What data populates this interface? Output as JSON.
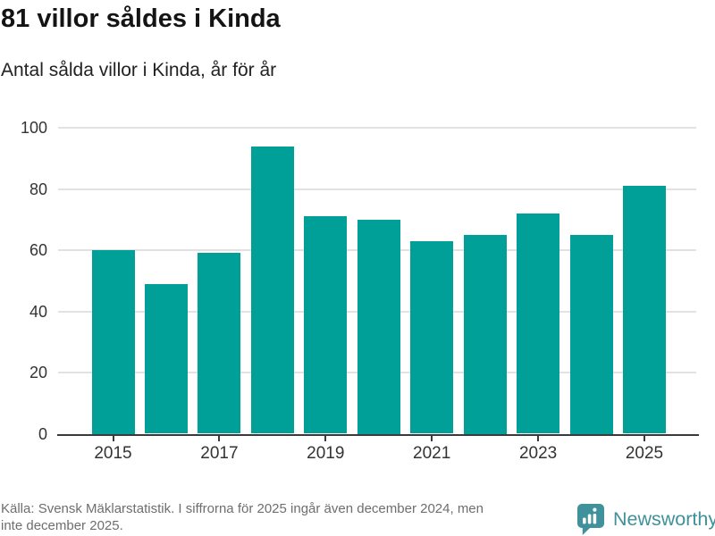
{
  "chart_data": {
    "type": "bar",
    "title": "81 villor såldes i Kinda",
    "subtitle": "Antal sålda villor i Kinda, år för år",
    "categories": [
      "2015",
      "2016",
      "2017",
      "2018",
      "2019",
      "2020",
      "2021",
      "2022",
      "2023",
      "2024",
      "2025"
    ],
    "values": [
      60,
      49,
      59,
      94,
      71,
      70,
      63,
      65,
      72,
      65,
      81
    ],
    "ylim": [
      0,
      100
    ],
    "yticks": [
      0,
      20,
      40,
      60,
      80,
      100
    ],
    "xtick_labels": [
      "2015",
      "2017",
      "2019",
      "2021",
      "2023",
      "2025"
    ],
    "grid": "horizontal",
    "legend_position": "none",
    "bar_color": "#00a099"
  },
  "footer": {
    "source_lines": [
      "Källa: Svensk Mäklarstatistik. I siffrorna för 2025 ingår även december 2024, men",
      "inte december 2025."
    ],
    "logo_text": "Newsworthy"
  },
  "colors": {
    "bar": "#00a099",
    "grid": "#e2e2e2",
    "axis": "#3a3a3a",
    "axis_text": "#333333",
    "title_text": "#141414",
    "footer_text": "#6e6e6e",
    "logo_teal": "#3f919b"
  }
}
